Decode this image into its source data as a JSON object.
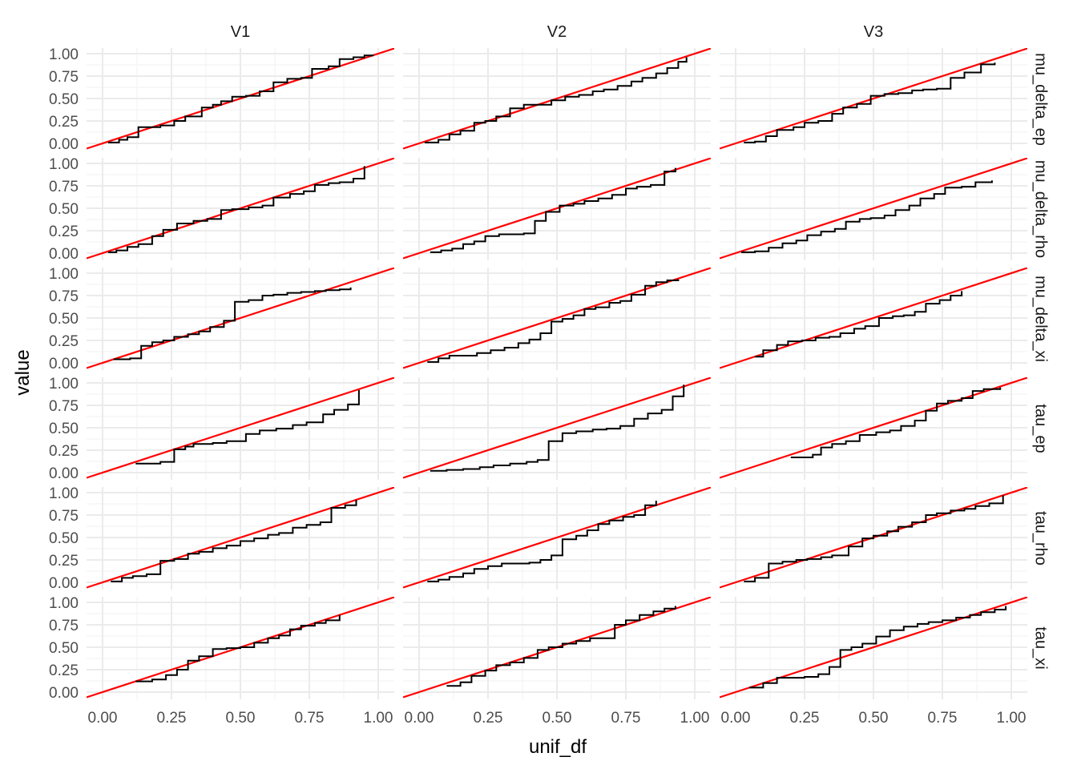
{
  "chart_data": {
    "type": "line",
    "title": "",
    "xlabel": "unif_df",
    "ylabel": "value",
    "xlim": [
      0,
      1
    ],
    "ylim": [
      0,
      1
    ],
    "x_ticks": [
      "0.00",
      "0.25",
      "0.50",
      "0.75",
      "1.00"
    ],
    "y_ticks": [
      "0.00",
      "0.25",
      "0.50",
      "0.75",
      "1.00"
    ],
    "grid": true,
    "reference_line": {
      "intercept": 0,
      "slope": 1,
      "color": "#ff0000"
    },
    "series_color": "#000000",
    "columns": [
      "V1",
      "V2",
      "V3"
    ],
    "rows": [
      "mu_delta_ep",
      "mu_delta_rho",
      "mu_delta_xi",
      "tau_ep",
      "tau_rho",
      "tau_xi"
    ],
    "panels": [
      {
        "column": "V1",
        "row": "mu_delta_ep",
        "step": "hv",
        "x": [
          0.02,
          0.06,
          0.09,
          0.13,
          0.21,
          0.26,
          0.3,
          0.36,
          0.4,
          0.43,
          0.47,
          0.52,
          0.57,
          0.62,
          0.67,
          0.72,
          0.76,
          0.82,
          0.86,
          0.91,
          0.95,
          0.98
        ],
        "y": [
          0.01,
          0.04,
          0.07,
          0.18,
          0.2,
          0.25,
          0.3,
          0.4,
          0.43,
          0.47,
          0.52,
          0.53,
          0.58,
          0.68,
          0.72,
          0.73,
          0.83,
          0.86,
          0.94,
          0.96,
          0.98,
          0.99
        ]
      },
      {
        "column": "V2",
        "row": "mu_delta_ep",
        "step": "hv",
        "x": [
          0.02,
          0.07,
          0.11,
          0.15,
          0.2,
          0.24,
          0.28,
          0.33,
          0.38,
          0.42,
          0.48,
          0.53,
          0.58,
          0.63,
          0.67,
          0.72,
          0.77,
          0.81,
          0.86,
          0.9,
          0.94,
          0.97
        ],
        "y": [
          0.01,
          0.04,
          0.1,
          0.14,
          0.23,
          0.25,
          0.3,
          0.39,
          0.43,
          0.43,
          0.48,
          0.52,
          0.54,
          0.58,
          0.6,
          0.64,
          0.69,
          0.73,
          0.78,
          0.84,
          0.91,
          0.96
        ]
      },
      {
        "column": "V3",
        "row": "mu_delta_ep",
        "step": "hv",
        "x": [
          0.03,
          0.07,
          0.11,
          0.15,
          0.21,
          0.25,
          0.3,
          0.35,
          0.39,
          0.44,
          0.49,
          0.54,
          0.59,
          0.64,
          0.68,
          0.73,
          0.78,
          0.83,
          0.89,
          0.94
        ],
        "y": [
          0.01,
          0.02,
          0.08,
          0.15,
          0.18,
          0.23,
          0.25,
          0.33,
          0.4,
          0.44,
          0.53,
          0.55,
          0.56,
          0.59,
          0.6,
          0.61,
          0.73,
          0.79,
          0.88,
          0.9
        ]
      },
      {
        "column": "V1",
        "row": "mu_delta_rho",
        "step": "hv",
        "x": [
          0.02,
          0.05,
          0.09,
          0.13,
          0.18,
          0.22,
          0.27,
          0.33,
          0.38,
          0.43,
          0.47,
          0.53,
          0.58,
          0.62,
          0.68,
          0.73,
          0.77,
          0.82,
          0.86,
          0.91,
          0.95
        ],
        "y": [
          0.01,
          0.03,
          0.07,
          0.1,
          0.19,
          0.26,
          0.33,
          0.36,
          0.38,
          0.48,
          0.49,
          0.51,
          0.53,
          0.62,
          0.66,
          0.69,
          0.76,
          0.78,
          0.79,
          0.83,
          0.97
        ]
      },
      {
        "column": "V2",
        "row": "mu_delta_rho",
        "step": "hv",
        "x": [
          0.04,
          0.08,
          0.12,
          0.16,
          0.2,
          0.24,
          0.29,
          0.33,
          0.38,
          0.42,
          0.46,
          0.51,
          0.56,
          0.6,
          0.65,
          0.7,
          0.75,
          0.79,
          0.84,
          0.89,
          0.93
        ],
        "y": [
          0.01,
          0.03,
          0.05,
          0.1,
          0.13,
          0.19,
          0.21,
          0.21,
          0.22,
          0.36,
          0.46,
          0.53,
          0.55,
          0.58,
          0.61,
          0.65,
          0.72,
          0.74,
          0.76,
          0.91,
          0.95
        ]
      },
      {
        "column": "V3",
        "row": "mu_delta_rho",
        "step": "hv",
        "x": [
          0.02,
          0.07,
          0.12,
          0.17,
          0.22,
          0.26,
          0.31,
          0.36,
          0.4,
          0.45,
          0.49,
          0.54,
          0.58,
          0.63,
          0.67,
          0.72,
          0.76,
          0.82,
          0.87,
          0.93
        ],
        "y": [
          0.01,
          0.02,
          0.06,
          0.11,
          0.14,
          0.2,
          0.24,
          0.27,
          0.35,
          0.38,
          0.39,
          0.42,
          0.48,
          0.53,
          0.61,
          0.66,
          0.73,
          0.74,
          0.79,
          0.81
        ]
      },
      {
        "column": "V1",
        "row": "mu_delta_xi",
        "step": "hv",
        "x": [
          0.04,
          0.1,
          0.14,
          0.18,
          0.22,
          0.26,
          0.31,
          0.35,
          0.39,
          0.44,
          0.48,
          0.53,
          0.58,
          0.62,
          0.67,
          0.72,
          0.77,
          0.81,
          0.86,
          0.9
        ],
        "y": [
          0.04,
          0.05,
          0.19,
          0.23,
          0.25,
          0.29,
          0.32,
          0.35,
          0.4,
          0.47,
          0.68,
          0.7,
          0.75,
          0.76,
          0.78,
          0.79,
          0.8,
          0.81,
          0.82,
          0.84
        ]
      },
      {
        "column": "V2",
        "row": "mu_delta_xi",
        "step": "hv",
        "x": [
          0.03,
          0.07,
          0.11,
          0.16,
          0.21,
          0.26,
          0.31,
          0.36,
          0.4,
          0.44,
          0.48,
          0.52,
          0.56,
          0.6,
          0.64,
          0.69,
          0.73,
          0.77,
          0.82,
          0.86,
          0.9,
          0.94
        ],
        "y": [
          0.01,
          0.05,
          0.08,
          0.08,
          0.11,
          0.14,
          0.17,
          0.22,
          0.26,
          0.33,
          0.46,
          0.49,
          0.53,
          0.6,
          0.62,
          0.67,
          0.69,
          0.76,
          0.86,
          0.9,
          0.92,
          0.93
        ]
      },
      {
        "column": "V3",
        "row": "mu_delta_xi",
        "step": "hv",
        "x": [
          0.07,
          0.1,
          0.15,
          0.19,
          0.24,
          0.29,
          0.34,
          0.38,
          0.43,
          0.47,
          0.52,
          0.57,
          0.61,
          0.65,
          0.69,
          0.74,
          0.78,
          0.82
        ],
        "y": [
          0.07,
          0.14,
          0.2,
          0.24,
          0.25,
          0.28,
          0.29,
          0.33,
          0.38,
          0.41,
          0.5,
          0.52,
          0.53,
          0.57,
          0.66,
          0.7,
          0.75,
          0.8
        ]
      },
      {
        "column": "V1",
        "row": "tau_ep",
        "step": "hv",
        "x": [
          0.12,
          0.21,
          0.26,
          0.3,
          0.33,
          0.4,
          0.45,
          0.52,
          0.57,
          0.63,
          0.69,
          0.74,
          0.8,
          0.84,
          0.89,
          0.93
        ],
        "y": [
          0.1,
          0.12,
          0.26,
          0.29,
          0.32,
          0.33,
          0.35,
          0.43,
          0.47,
          0.49,
          0.53,
          0.56,
          0.65,
          0.7,
          0.76,
          0.92
        ]
      },
      {
        "column": "V2",
        "row": "tau_ep",
        "step": "hv",
        "x": [
          0.04,
          0.1,
          0.16,
          0.22,
          0.27,
          0.33,
          0.39,
          0.43,
          0.47,
          0.52,
          0.57,
          0.63,
          0.68,
          0.73,
          0.78,
          0.83,
          0.88,
          0.92,
          0.96
        ],
        "y": [
          0.02,
          0.03,
          0.04,
          0.06,
          0.08,
          0.1,
          0.12,
          0.14,
          0.35,
          0.44,
          0.46,
          0.48,
          0.49,
          0.52,
          0.6,
          0.66,
          0.7,
          0.85,
          0.98
        ]
      },
      {
        "column": "V3",
        "row": "tau_ep",
        "step": "hv",
        "x": [
          0.2,
          0.28,
          0.31,
          0.35,
          0.4,
          0.45,
          0.51,
          0.56,
          0.6,
          0.65,
          0.69,
          0.73,
          0.77,
          0.82,
          0.86,
          0.9,
          0.96
        ],
        "y": [
          0.17,
          0.2,
          0.28,
          0.32,
          0.35,
          0.42,
          0.45,
          0.47,
          0.52,
          0.58,
          0.69,
          0.77,
          0.8,
          0.83,
          0.91,
          0.93,
          0.95
        ]
      },
      {
        "column": "V1",
        "row": "tau_rho",
        "step": "hv",
        "x": [
          0.03,
          0.07,
          0.11,
          0.16,
          0.21,
          0.26,
          0.31,
          0.35,
          0.4,
          0.45,
          0.5,
          0.55,
          0.6,
          0.64,
          0.69,
          0.74,
          0.79,
          0.83,
          0.88,
          0.92
        ],
        "y": [
          0.01,
          0.05,
          0.07,
          0.09,
          0.24,
          0.26,
          0.32,
          0.34,
          0.38,
          0.41,
          0.46,
          0.49,
          0.53,
          0.55,
          0.61,
          0.64,
          0.67,
          0.83,
          0.86,
          0.92
        ]
      },
      {
        "column": "V2",
        "row": "tau_rho",
        "step": "hv",
        "x": [
          0.03,
          0.07,
          0.11,
          0.16,
          0.2,
          0.25,
          0.3,
          0.35,
          0.4,
          0.44,
          0.48,
          0.52,
          0.57,
          0.61,
          0.65,
          0.69,
          0.74,
          0.78,
          0.82,
          0.86
        ],
        "y": [
          0.01,
          0.03,
          0.06,
          0.1,
          0.15,
          0.18,
          0.21,
          0.21,
          0.22,
          0.25,
          0.3,
          0.48,
          0.52,
          0.58,
          0.65,
          0.69,
          0.73,
          0.75,
          0.86,
          0.91
        ]
      },
      {
        "column": "V3",
        "row": "tau_rho",
        "step": "hv",
        "x": [
          0.03,
          0.07,
          0.12,
          0.17,
          0.22,
          0.26,
          0.31,
          0.35,
          0.41,
          0.46,
          0.5,
          0.55,
          0.59,
          0.64,
          0.69,
          0.73,
          0.78,
          0.83,
          0.87,
          0.92,
          0.97
        ],
        "y": [
          0.01,
          0.05,
          0.21,
          0.23,
          0.25,
          0.26,
          0.28,
          0.3,
          0.4,
          0.49,
          0.52,
          0.57,
          0.62,
          0.67,
          0.75,
          0.77,
          0.8,
          0.82,
          0.85,
          0.88,
          0.97
        ]
      },
      {
        "column": "V1",
        "row": "tau_xi",
        "step": "hv",
        "x": [
          0.12,
          0.18,
          0.23,
          0.27,
          0.31,
          0.35,
          0.4,
          0.45,
          0.5,
          0.55,
          0.6,
          0.64,
          0.68,
          0.72,
          0.77,
          0.81,
          0.86
        ],
        "y": [
          0.12,
          0.14,
          0.19,
          0.25,
          0.35,
          0.4,
          0.48,
          0.49,
          0.5,
          0.55,
          0.6,
          0.63,
          0.7,
          0.74,
          0.77,
          0.8,
          0.86
        ]
      },
      {
        "column": "V2",
        "row": "tau_xi",
        "step": "hv",
        "x": [
          0.1,
          0.15,
          0.19,
          0.24,
          0.28,
          0.33,
          0.38,
          0.43,
          0.47,
          0.52,
          0.57,
          0.62,
          0.67,
          0.71,
          0.75,
          0.8,
          0.85,
          0.89,
          0.93
        ],
        "y": [
          0.07,
          0.11,
          0.18,
          0.24,
          0.3,
          0.33,
          0.38,
          0.47,
          0.5,
          0.54,
          0.57,
          0.6,
          0.6,
          0.75,
          0.8,
          0.86,
          0.9,
          0.93,
          0.96
        ]
      },
      {
        "column": "V3",
        "row": "tau_xi",
        "step": "hv",
        "x": [
          0.05,
          0.1,
          0.15,
          0.2,
          0.25,
          0.3,
          0.34,
          0.38,
          0.42,
          0.46,
          0.51,
          0.56,
          0.61,
          0.66,
          0.7,
          0.75,
          0.8,
          0.85,
          0.89,
          0.94,
          0.98
        ],
        "y": [
          0.05,
          0.1,
          0.16,
          0.16,
          0.17,
          0.2,
          0.28,
          0.47,
          0.5,
          0.54,
          0.62,
          0.69,
          0.73,
          0.76,
          0.78,
          0.8,
          0.83,
          0.86,
          0.89,
          0.92,
          0.96
        ]
      }
    ]
  }
}
